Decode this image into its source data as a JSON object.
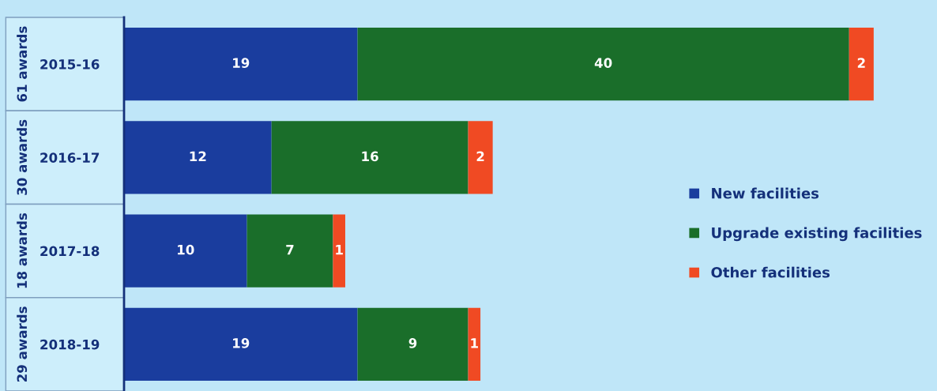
{
  "chart_data": {
    "type": "bar",
    "orientation": "horizontal",
    "stacked": true,
    "data_labels": true,
    "legend": "right",
    "grid": false,
    "tick_labels": "y",
    "xlim": [
      0,
      66
    ],
    "categories": [
      "2015-16",
      "2016-17",
      "2017-18",
      "2018-19"
    ],
    "series": [
      {
        "name": "New facilities",
        "color": "#1a3d9e",
        "values": [
          19,
          12,
          10,
          19
        ]
      },
      {
        "name": "Upgrade existing facilities",
        "color": "#1a6e2a",
        "values": [
          40,
          16,
          7,
          9
        ]
      },
      {
        "name": "Other facilities",
        "color": "#f04a23",
        "values": [
          2,
          2,
          1,
          1
        ]
      }
    ],
    "annotations": [
      "61 awards",
      "30 awards",
      "18 awards",
      "29 awards"
    ]
  }
}
